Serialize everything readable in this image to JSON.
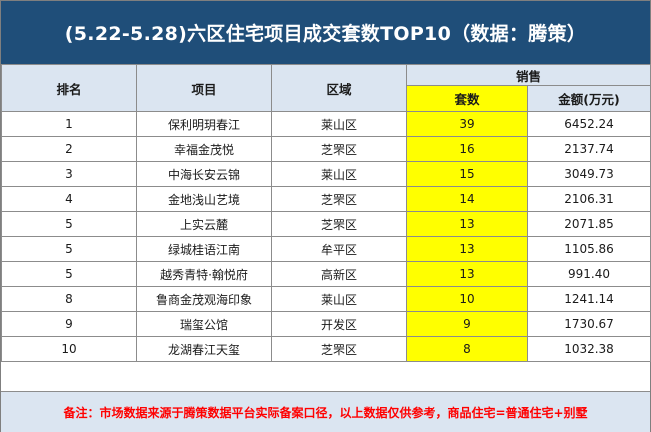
{
  "title": "(5.22-5.28)六区住宅项目成交套数TOP10（数据：腾策）",
  "headers": {
    "rank": "排名",
    "project": "项目",
    "district": "区域",
    "sales": "销售",
    "units": "套数",
    "amount": "金额(万元)"
  },
  "rows": [
    {
      "rank": "1",
      "project": "保利明玥春江",
      "district": "莱山区",
      "units": "39",
      "amount": "6452.24"
    },
    {
      "rank": "2",
      "project": "幸福金茂悦",
      "district": "芝罘区",
      "units": "16",
      "amount": "2137.74"
    },
    {
      "rank": "3",
      "project": "中海长安云锦",
      "district": "莱山区",
      "units": "15",
      "amount": "3049.73"
    },
    {
      "rank": "4",
      "project": "金地浅山艺境",
      "district": "芝罘区",
      "units": "14",
      "amount": "2106.31"
    },
    {
      "rank": "5",
      "project": "上实云麓",
      "district": "芝罘区",
      "units": "13",
      "amount": "2071.85"
    },
    {
      "rank": "5",
      "project": "绿城桂语江南",
      "district": "牟平区",
      "units": "13",
      "amount": "1105.86"
    },
    {
      "rank": "5",
      "project": "越秀青特·翰悦府",
      "district": "高新区",
      "units": "13",
      "amount": "991.40"
    },
    {
      "rank": "8",
      "project": "鲁商金茂观海印象",
      "district": "莱山区",
      "units": "10",
      "amount": "1241.14"
    },
    {
      "rank": "9",
      "project": "瑞玺公馆",
      "district": "开发区",
      "units": "9",
      "amount": "1730.67"
    },
    {
      "rank": "10",
      "project": "龙湖春江天玺",
      "district": "芝罘区",
      "units": "8",
      "amount": "1032.38"
    }
  ],
  "note": "备注：市场数据来源于腾策数据平台实际备案口径，以上数据仅供参考，商品住宅=普通住宅+别墅",
  "colors": {
    "title_bg": "#1f4e79",
    "header_bg": "#dbe5f1",
    "highlight": "#ffff00",
    "note_text": "#ff0000"
  }
}
